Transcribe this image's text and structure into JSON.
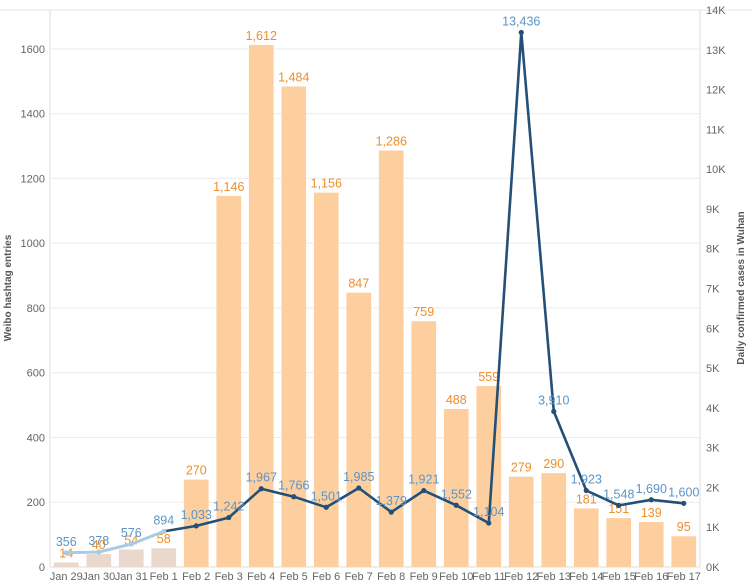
{
  "chart_data": {
    "type": "bar",
    "categories": [
      "Jan 29",
      "Jan 30",
      "Jan 31",
      "Feb 1",
      "Feb 2",
      "Feb 3",
      "Feb 4",
      "Feb 5",
      "Feb 6",
      "Feb 7",
      "Feb 8",
      "Feb 9",
      "Feb 10",
      "Feb 11",
      "Feb 12",
      "Feb 13",
      "Feb 14",
      "Feb 15",
      "Feb 16",
      "Feb 17"
    ],
    "bar_series": {
      "axis": "left",
      "values": [
        14,
        40,
        54,
        58,
        270,
        1146,
        1612,
        1484,
        1156,
        847,
        1286,
        759,
        488,
        559,
        279,
        290,
        181,
        151,
        139,
        95
      ],
      "labels": [
        "14",
        "40",
        "54",
        "58",
        "270",
        "1,146",
        "1,612",
        "1,484",
        "1,156",
        "847",
        "1,286",
        "759",
        "488",
        "559",
        "279",
        "290",
        "181",
        "151",
        "139",
        "95"
      ]
    },
    "line_series": {
      "axis": "right",
      "values": [
        356,
        378,
        576,
        894,
        1033,
        1242,
        1967,
        1766,
        1501,
        1985,
        1379,
        1921,
        1552,
        1104,
        13436,
        3910,
        1923,
        1548,
        1690,
        1600
      ],
      "labels": [
        "356",
        "378",
        "576",
        "894",
        "1,033",
        "1,242",
        "1,967",
        "1,766",
        "1,501",
        "1,985",
        "1,379",
        "1,921",
        "1,552",
        "1,104",
        "13,436",
        "3,910",
        "1,923",
        "1,548",
        "1,690",
        "1,600"
      ]
    },
    "left_axis": {
      "title": "Weibo hashtag entries",
      "range": [
        0,
        1720
      ],
      "ticks": [
        0,
        200,
        400,
        600,
        800,
        1000,
        1200,
        1400,
        1600
      ],
      "tick_labels": [
        "0",
        "200",
        "400",
        "600",
        "800",
        "1000",
        "1200",
        "1400",
        "1600"
      ]
    },
    "right_axis": {
      "title": "Daily confirmed cases in Wuhan",
      "range": [
        0,
        14000
      ],
      "ticks": [
        0,
        1000,
        2000,
        3000,
        4000,
        5000,
        6000,
        7000,
        8000,
        9000,
        10000,
        11000,
        12000,
        13000,
        14000
      ],
      "tick_labels": [
        "0K",
        "1K",
        "2K",
        "3K",
        "4K",
        "5K",
        "6K",
        "7K",
        "8K",
        "9K",
        "10K",
        "11K",
        "12K",
        "13K",
        "14K"
      ]
    },
    "colors": {
      "bar_light": "#ead8cc",
      "bar": "#fdcf9f",
      "bar_label": "#ee8f2c",
      "line_light": "#a8cbe6",
      "line": "#244f76",
      "line_label": "#5b95c7",
      "grid": "#ececec"
    },
    "grid": true
  }
}
